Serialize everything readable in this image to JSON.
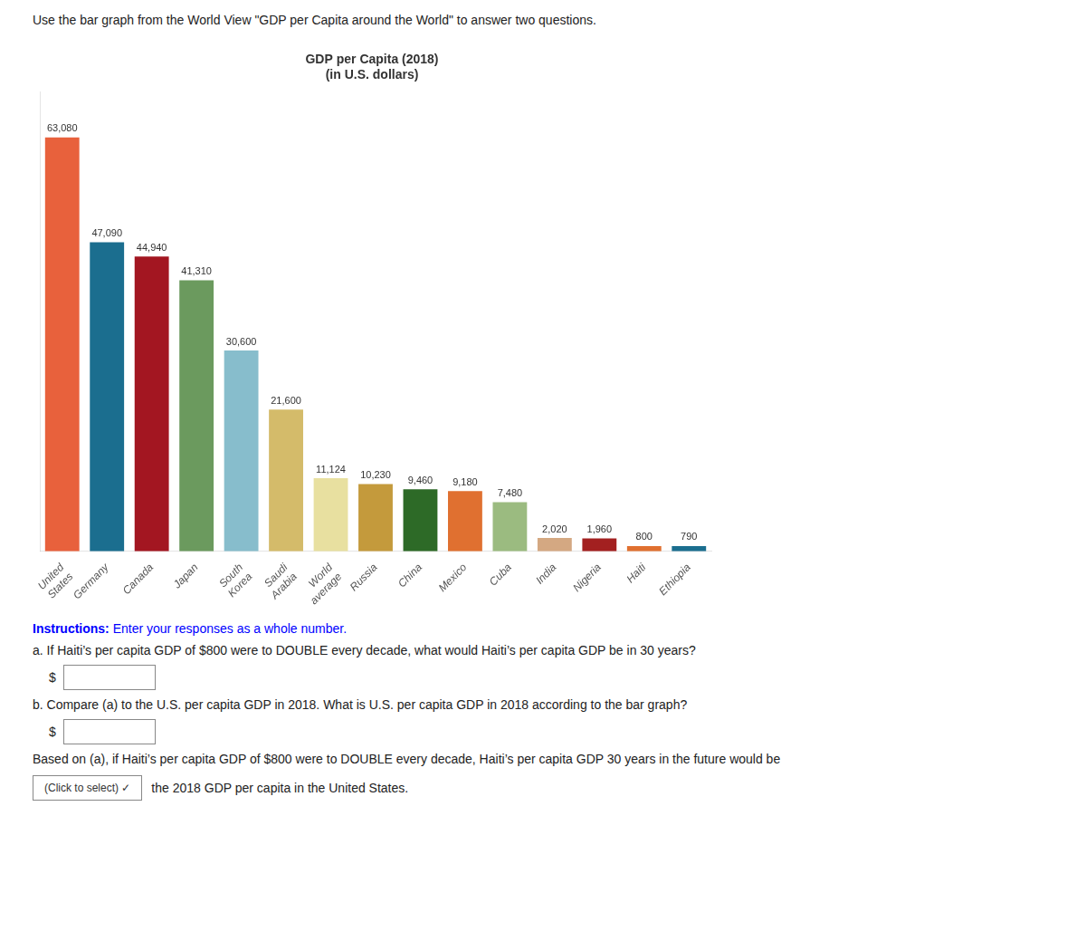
{
  "chart_data": {
    "type": "bar",
    "title": "GDP per Capita (2018)\n(in U.S. dollars)",
    "categories": [
      "United\nStates",
      "Germany",
      "Canada",
      "Japan",
      "South\nKorea",
      "Saudi\nArabia",
      "World\naverage",
      "Russia",
      "China",
      "Mexico",
      "Cuba",
      "India",
      "Nigeria",
      "Haiti",
      "Ethiopia"
    ],
    "values": [
      63080,
      47090,
      44940,
      41310,
      30600,
      21600,
      11124,
      10230,
      9460,
      9180,
      7480,
      2020,
      1960,
      800,
      790
    ],
    "value_labels": [
      "63,080",
      "47,090",
      "44,940",
      "41,310",
      "30,600",
      "21,600",
      "11,124",
      "10,230",
      "9,460",
      "9,180",
      "7,480",
      "2,020",
      "1,960",
      "800",
      "790"
    ],
    "colors": [
      "#E8613C",
      "#1B6E8F",
      "#A31621",
      "#6B9A5E",
      "#87BDCC",
      "#D4BB6A",
      "#E8E0A0",
      "#C49A3C",
      "#2D6A27",
      "#E07030",
      "#9BBB80",
      "#D4A882",
      "#A32020",
      "#E07030",
      "#1B6E8F"
    ],
    "ylim": [
      0,
      70000
    ],
    "grid": false,
    "data_labels": true,
    "tick_labels": "x",
    "annotations": [
      "Use the bar graph from the World View \"GDP per Capita around the World\" to answer two questions.",
      "Instructions:",
      "Enter your responses as a whole number.",
      "a. If Haiti’s per capita GDP of $800 were to DOUBLE every decade, what would Haiti’s per capita GDP be in 30 years?",
      "$",
      "b. Compare (a) to the U.S. per capita GDP in 2018. What is U.S. per capita GDP in 2018 according to the bar graph?",
      "$",
      "Based on (a), if Haiti’s per capita GDP of $800 were to DOUBLE every decade, Haiti’s per capita GDP 30 years in the future would be",
      "(Click to select)  ✓",
      "the 2018 GDP per capita in the United States."
    ]
  }
}
